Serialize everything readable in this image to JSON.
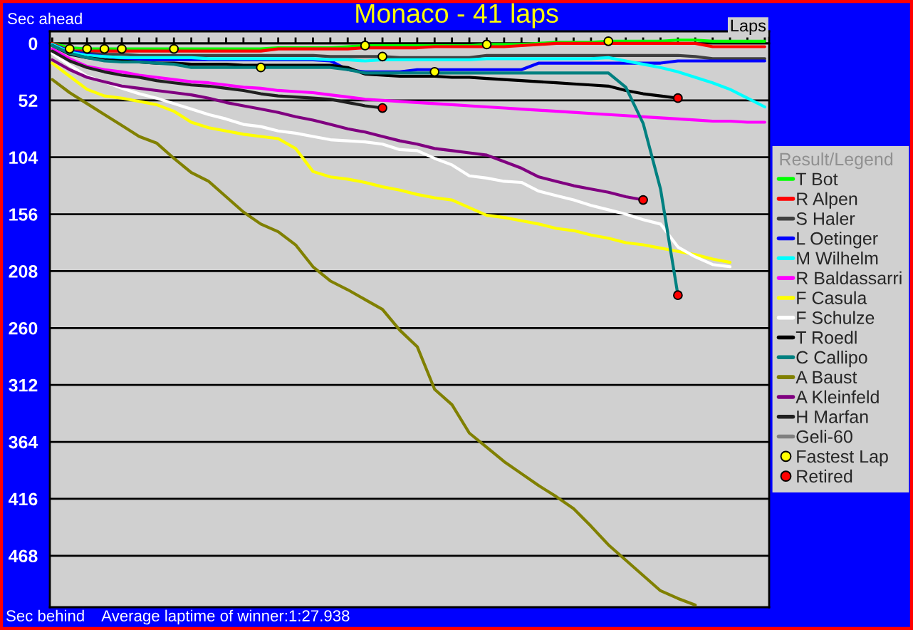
{
  "chart_data": {
    "type": "line",
    "title": "Monaco - 41 laps",
    "xlabel": "Laps",
    "ylabel": "Sec ahead",
    "annotations": [
      "Sec behind",
      "Average laptime of winner:1:27.938"
    ],
    "legend_title": "Result/Legend",
    "legend": "right",
    "grid": "y",
    "categories": [
      null,
      null,
      null,
      null,
      null,
      null,
      null,
      null,
      null,
      null,
      null,
      null,
      null,
      null,
      null,
      null,
      null,
      null,
      null,
      null,
      null,
      null,
      null,
      null,
      null,
      null,
      null,
      null,
      null,
      null,
      null,
      null,
      null,
      null,
      null,
      null,
      null,
      null,
      null,
      null,
      null,
      null
    ],
    "ylim": [
      515,
      -11
    ],
    "yticks": [
      0,
      52,
      104,
      156,
      208,
      260,
      312,
      364,
      416,
      468
    ],
    "series": [
      {
        "name": "T Bot",
        "color": "#00ff00",
        "values": [
          0,
          4,
          5,
          5,
          5,
          5,
          5,
          5,
          5,
          5,
          5,
          5,
          5,
          4,
          4,
          4,
          4,
          3,
          2,
          2,
          2,
          2,
          2,
          2,
          2,
          1,
          1,
          1,
          0,
          -1,
          -1,
          -1,
          -2,
          -2,
          -2,
          -2,
          -3,
          -3,
          -2,
          -2,
          -2,
          -2
        ]
      },
      {
        "name": "R Alpen",
        "color": "#ff0000",
        "values": [
          0,
          7,
          7,
          7,
          7,
          7,
          7,
          7,
          7,
          7,
          7,
          7,
          7,
          5,
          5,
          5,
          5,
          5,
          4,
          4,
          4,
          4,
          3,
          3,
          3,
          3,
          3,
          2,
          1,
          0,
          0,
          0,
          0,
          0,
          0,
          0,
          0,
          0,
          3,
          3,
          3,
          3
        ]
      },
      {
        "name": "S Haler",
        "color": "#404040",
        "values": [
          1,
          7,
          9,
          10,
          10,
          11,
          11,
          11,
          11,
          11,
          11,
          11,
          11,
          11,
          11,
          11,
          12,
          12,
          12,
          12,
          13,
          13,
          13,
          13,
          13,
          11,
          11,
          11,
          11,
          11,
          11,
          11,
          11,
          11,
          11,
          11,
          11,
          12,
          14,
          14,
          14,
          14
        ]
      },
      {
        "name": "L Oetinger",
        "color": "#0000ff",
        "values": [
          1,
          7,
          10,
          12,
          14,
          15,
          15,
          15,
          15,
          15,
          15,
          15,
          15,
          15,
          15,
          15,
          16,
          24,
          26,
          26,
          26,
          24,
          24,
          24,
          24,
          24,
          24,
          24,
          18,
          18,
          18,
          18,
          18,
          18,
          18,
          18,
          16,
          16,
          16,
          16,
          16,
          16
        ]
      },
      {
        "name": "M Wilhelm",
        "color": "#00ffff",
        "values": [
          1,
          8,
          11,
          12,
          13,
          13,
          13,
          13,
          13,
          14,
          14,
          14,
          14,
          14,
          14,
          14,
          15,
          15,
          16,
          15,
          15,
          15,
          15,
          15,
          15,
          14,
          14,
          14,
          14,
          14,
          14,
          14,
          13,
          16,
          19,
          22,
          26,
          31,
          36,
          42,
          50,
          58
        ]
      },
      {
        "name": "R Baldassarri",
        "color": "#ff00ff",
        "values": [
          5,
          14,
          21,
          24,
          26,
          29,
          31,
          33,
          35,
          36,
          38,
          40,
          41,
          43,
          44,
          45,
          47,
          49,
          51,
          52,
          53,
          54,
          55,
          56,
          57,
          58,
          59,
          60,
          61,
          62,
          63,
          64,
          65,
          66,
          67,
          68,
          69,
          70,
          71,
          71,
          72,
          72
        ]
      },
      {
        "name": "F Casula",
        "color": "#ffff00",
        "values": [
          18,
          30,
          42,
          48,
          50,
          53,
          56,
          62,
          72,
          77,
          80,
          83,
          85,
          87,
          96,
          117,
          122,
          124,
          127,
          131,
          134,
          138,
          141,
          143,
          150,
          157,
          159,
          162,
          165,
          169,
          171,
          175,
          178,
          182,
          184,
          187,
          190,
          193,
          197,
          200,
          null,
          null
        ]
      },
      {
        "name": "F Schulze",
        "color": "#ffffff",
        "values": [
          9,
          20,
          30,
          35,
          41,
          46,
          50,
          55,
          60,
          65,
          69,
          74,
          76,
          80,
          82,
          85,
          88,
          89,
          90,
          92,
          97,
          98,
          105,
          111,
          121,
          123,
          126,
          127,
          135,
          139,
          143,
          148,
          152,
          156,
          161,
          165,
          186,
          195,
          202,
          204,
          null,
          null
        ]
      },
      {
        "name": "T Roedl",
        "color": "#000000",
        "values": [
          2,
          10,
          13,
          15,
          16,
          17,
          18,
          18,
          19,
          19,
          19,
          20,
          20,
          20,
          20,
          20,
          20,
          22,
          28,
          29,
          30,
          30,
          30,
          31,
          31,
          32,
          33,
          34,
          35,
          36,
          37,
          38,
          39,
          43,
          46,
          48,
          50,
          null,
          null,
          null,
          null,
          null
        ]
      },
      {
        "name": "C Callipo",
        "color": "#008080",
        "values": [
          2,
          9,
          13,
          16,
          17,
          17,
          18,
          19,
          22,
          22,
          22,
          22,
          22,
          22,
          22,
          22,
          22,
          24,
          27,
          27,
          27,
          27,
          27,
          27,
          27,
          27,
          27,
          27,
          27,
          27,
          27,
          27,
          27,
          40,
          73,
          133,
          230,
          null,
          null,
          null,
          null,
          null
        ]
      },
      {
        "name": "A Baust",
        "color": "#808000",
        "values": [
          33,
          45,
          55,
          65,
          75,
          85,
          91,
          105,
          118,
          126,
          140,
          154,
          165,
          172,
          184,
          204,
          217,
          225,
          234,
          243,
          262,
          277,
          316,
          330,
          356,
          369,
          382,
          393,
          404,
          414,
          425,
          441,
          458,
          472,
          486,
          500,
          507,
          513,
          null,
          null,
          null,
          null
        ]
      },
      {
        "name": "A Kleinfeld",
        "color": "#800080",
        "values": [
          15,
          24,
          31,
          35,
          39,
          41,
          43,
          45,
          47,
          50,
          54,
          57,
          60,
          63,
          67,
          70,
          74,
          78,
          81,
          85,
          89,
          92,
          96,
          98,
          100,
          102,
          108,
          114,
          122,
          126,
          130,
          133,
          136,
          140,
          143,
          null,
          null,
          null,
          null,
          null,
          null,
          null
        ]
      },
      {
        "name": "H Marfan",
        "color": "#202020",
        "values": [
          7,
          16,
          22,
          26,
          29,
          31,
          34,
          36,
          38,
          39,
          41,
          43,
          46,
          48,
          49,
          50,
          51,
          54,
          57,
          59,
          null,
          null,
          null,
          null,
          null,
          null,
          null,
          null,
          null,
          null,
          null,
          null,
          null,
          null,
          null,
          null,
          null,
          null,
          null,
          null,
          null,
          null
        ]
      },
      {
        "name": "Geli-60",
        "color": "#808080",
        "values": [
          null,
          null,
          null,
          null,
          null,
          null,
          null,
          null,
          null,
          null,
          null,
          null,
          null,
          null,
          null,
          null,
          null,
          null,
          null,
          null,
          null,
          null,
          null,
          null,
          null,
          null,
          null,
          null,
          null,
          null,
          null,
          null,
          null,
          null,
          null,
          null,
          null,
          null,
          null,
          null,
          null,
          null
        ]
      },
      {
        "name": "Fastest Lap",
        "type": "scatter",
        "marker": "circle",
        "color": "#ffff00",
        "values": [
          null,
          5,
          5,
          5,
          5,
          null,
          null,
          5,
          null,
          null,
          null,
          null,
          22,
          null,
          null,
          null,
          null,
          null,
          2,
          12,
          null,
          null,
          26,
          null,
          null,
          1,
          null,
          null,
          null,
          null,
          null,
          null,
          -2,
          null,
          null,
          null,
          null,
          null,
          null,
          null,
          null,
          null
        ]
      },
      {
        "name": "Retired",
        "type": "scatter",
        "marker": "circle",
        "color": "#ff0000",
        "values": [
          null,
          null,
          null,
          null,
          null,
          null,
          null,
          null,
          null,
          null,
          null,
          null,
          null,
          null,
          null,
          null,
          null,
          null,
          null,
          59,
          null,
          null,
          null,
          null,
          null,
          null,
          null,
          null,
          null,
          null,
          null,
          null,
          null,
          null,
          143,
          null,
          50,
          null,
          null,
          null,
          null,
          null
        ]
      },
      {
        "type": "scatter",
        "marker": "circle",
        "color": "#ff0000",
        "values": [
          null,
          null,
          null,
          null,
          null,
          null,
          null,
          null,
          null,
          null,
          null,
          null,
          null,
          null,
          null,
          null,
          null,
          null,
          null,
          null,
          null,
          null,
          null,
          null,
          null,
          null,
          null,
          null,
          null,
          null,
          null,
          null,
          null,
          null,
          null,
          null,
          230,
          null,
          null,
          null,
          null,
          null
        ]
      }
    ]
  }
}
